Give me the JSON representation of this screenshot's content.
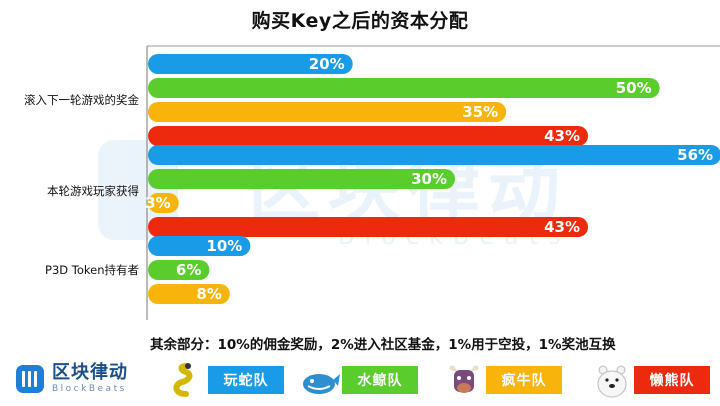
{
  "chart_data": {
    "type": "bar",
    "orientation": "horizontal",
    "title": "购买Key之后的资本分配",
    "categories": [
      "滚入下一轮游戏的奖金",
      "本轮游戏玩家获得",
      "P3D Token持有者"
    ],
    "series": [
      {
        "name": "玩蛇队",
        "color": "#1a9be8",
        "values": [
          20,
          56,
          10
        ]
      },
      {
        "name": "水鲸队",
        "color": "#5acd2c",
        "values": [
          50,
          30,
          6
        ]
      },
      {
        "name": "疯牛队",
        "color": "#f8b40a",
        "values": [
          35,
          3,
          8
        ]
      },
      {
        "name": "懒熊队",
        "color": "#ee2a0e",
        "values": [
          43,
          43,
          null
        ]
      }
    ],
    "value_labels": [
      [
        "20%",
        "50%",
        "35%",
        "43%"
      ],
      [
        "56%",
        "30%",
        "3%",
        "43%"
      ],
      [
        "10%",
        "6%",
        "8%"
      ]
    ],
    "xlim": [
      0,
      60
    ],
    "grid": false,
    "legend": "bottom"
  },
  "note": "其余部分：10%的佣金奖励，2%进入社区基金，1%用于空投，1%奖池互换",
  "logo": {
    "cn": "区块律动",
    "en": "BlockBeats"
  },
  "watermark": {
    "cn": "区块律动",
    "en": "BlockBeats"
  },
  "legend_items": [
    {
      "label": "玩蛇队",
      "color": "#1a9be8",
      "icon": "snake-icon"
    },
    {
      "label": "水鲸队",
      "color": "#5acd2c",
      "icon": "whale-icon"
    },
    {
      "label": "疯牛队",
      "color": "#f8b40a",
      "icon": "bull-icon"
    },
    {
      "label": "懒熊队",
      "color": "#ee2a0e",
      "icon": "bear-icon"
    }
  ]
}
